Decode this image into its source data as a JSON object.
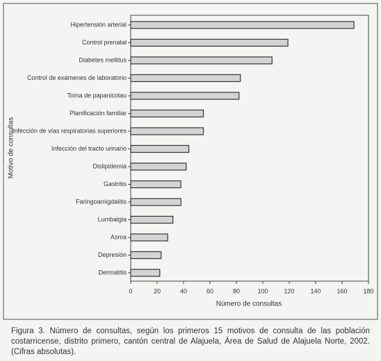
{
  "chart_data": {
    "type": "bar",
    "orientation": "horizontal",
    "ylabel": "Motivo de consultas",
    "xlabel": "Número de consultas",
    "categories": [
      "Hipertensión arterial",
      "Control prenatal",
      "Diabetes mellitus",
      "Control de exámenes de laboratorio",
      "Toma de papanicolau",
      "Planificación familiar",
      "Infección de vías respiratorias superiores",
      "Infección del tracto urinario",
      "Dislipidemia",
      "Gastritis",
      "Faringoamigdalitis",
      "Lumbalgia",
      "Asma",
      "Depresión",
      "Dermatitis"
    ],
    "values": [
      169,
      119,
      107,
      83,
      82,
      55,
      55,
      44,
      42,
      38,
      38,
      32,
      28,
      23,
      22
    ],
    "color": "#d4d4d4",
    "xlim": [
      0,
      180
    ],
    "xticks": [
      0,
      20,
      40,
      60,
      80,
      100,
      120,
      140,
      160,
      180
    ]
  },
  "caption": "Figura 3. Número de consultas, según los primeros 15 motivos de consulta de las población costarricense, distrito primero, cantón central de Alajuela, Área de Salud de Alajuela Norte, 2002. (Cifras absolutas)."
}
